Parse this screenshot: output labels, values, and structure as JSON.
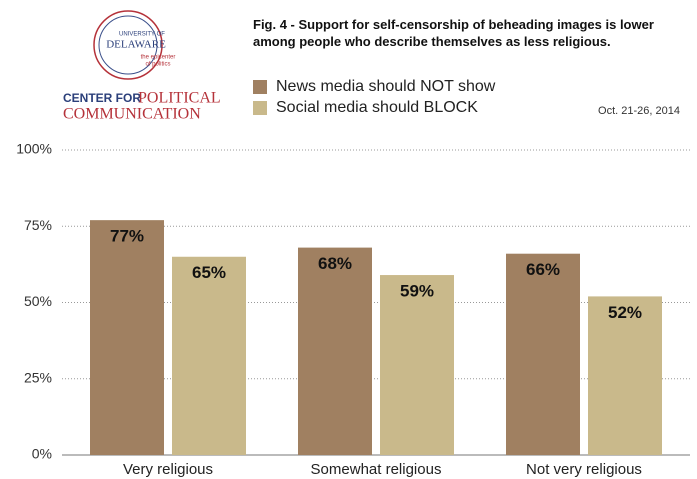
{
  "chart_data": {
    "type": "bar",
    "title": "Fig. 4 - Support for self-censorship of beheading images is lower among people who describe themselves as less religious.",
    "date": "Oct. 21-26, 2014",
    "logo": {
      "university": [
        "UNIVERSITY OF",
        "DELAWARE"
      ],
      "tagline": [
        "the epicenter",
        "of politics"
      ],
      "center": [
        "CENTER FOR",
        "POLITICAL",
        "COMMUNICATION"
      ]
    },
    "categories": [
      "Very religious",
      "Somewhat religious",
      "Not very religious"
    ],
    "series": [
      {
        "name": "News media should NOT show",
        "color": "#a08061",
        "values": [
          77,
          68,
          66
        ],
        "value_labels": [
          "77%",
          "68%",
          "66%"
        ]
      },
      {
        "name": "Social media should BLOCK",
        "color": "#c9b98b",
        "values": [
          65,
          59,
          52
        ],
        "value_labels": [
          "65%",
          "59%",
          "52%"
        ]
      }
    ],
    "ylim": [
      0,
      100
    ],
    "yticks": [
      {
        "value": 0,
        "label": "0%"
      },
      {
        "value": 25,
        "label": "25%"
      },
      {
        "value": 50,
        "label": "50%"
      },
      {
        "value": 75,
        "label": "75%"
      },
      {
        "value": 100,
        "label": "100%"
      }
    ],
    "grid": true
  }
}
